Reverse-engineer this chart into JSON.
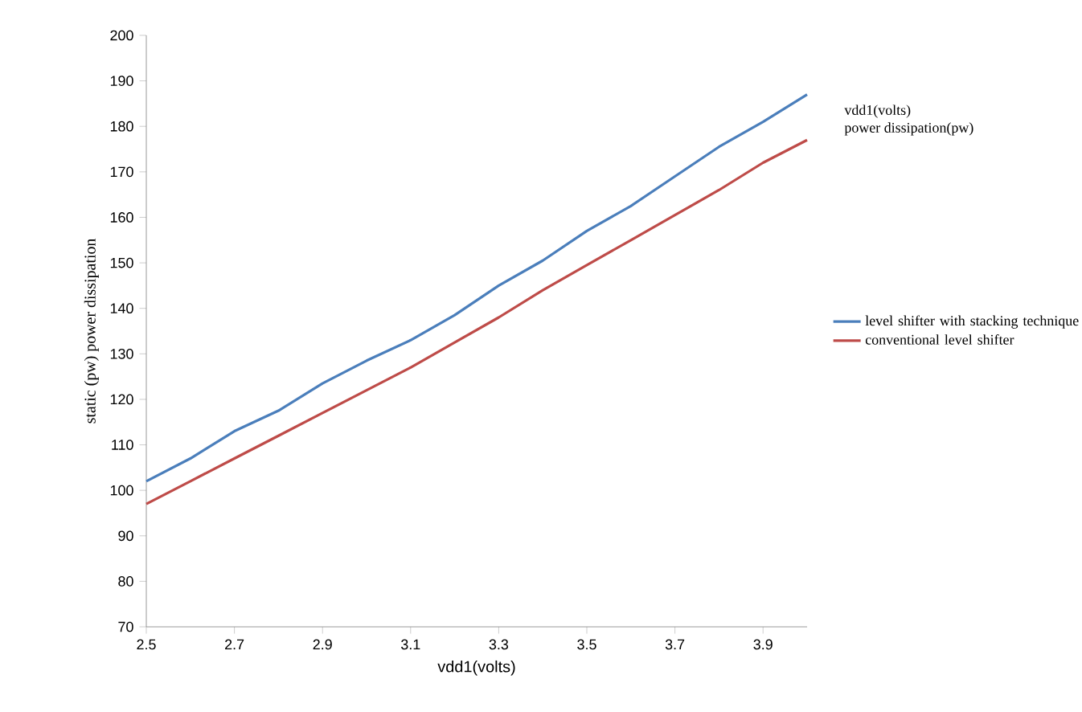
{
  "chart_data": {
    "type": "line",
    "xlabel": "vdd1(volts)",
    "ylabel": "static (pw) power dissipation",
    "annotations": [
      "vdd1(volts)",
      "power dissipation(pw)"
    ],
    "x": [
      2.5,
      2.6,
      2.7,
      2.8,
      2.9,
      3.0,
      3.1,
      3.2,
      3.3,
      3.4,
      3.5,
      3.6,
      3.7,
      3.8,
      3.9,
      4.0
    ],
    "series": [
      {
        "name": "level shifter with stacking technique",
        "color": "#4a7ebb",
        "values": [
          102,
          107,
          113,
          117.5,
          123.5,
          128.5,
          133,
          138.5,
          145,
          150.5,
          157,
          162.5,
          169,
          175.5,
          181,
          187
        ]
      },
      {
        "name": "conventional level shifter",
        "color": "#be4b48",
        "values": [
          97,
          102,
          107,
          112,
          117,
          122,
          127,
          132.5,
          138,
          144,
          149.5,
          155,
          160.5,
          166,
          172,
          177
        ]
      }
    ],
    "xlim": [
      2.5,
      4.0
    ],
    "xticks": [
      2.5,
      2.7,
      2.9,
      3.1,
      3.3,
      3.5,
      3.7,
      3.9
    ],
    "ylim": [
      70,
      200
    ],
    "yticks": [
      70,
      80,
      90,
      100,
      110,
      120,
      130,
      140,
      150,
      160,
      170,
      180,
      190,
      200
    ],
    "grid": false,
    "legend": "right",
    "marker": "none",
    "line_style": "solid"
  }
}
